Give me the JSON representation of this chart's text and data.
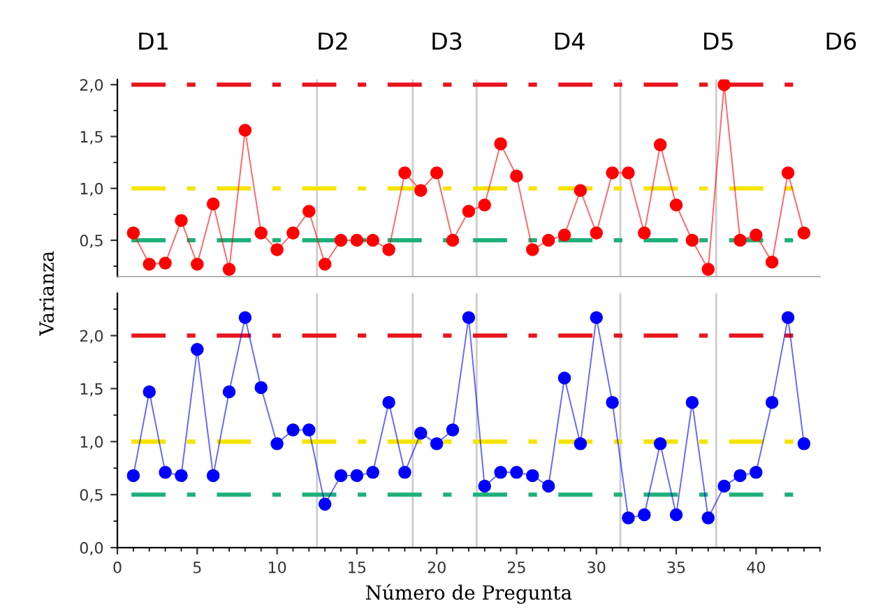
{
  "chart_data": [
    {
      "type": "line",
      "marker": "circle",
      "line_style": "solid",
      "grid": false,
      "tick_labels": "y",
      "xlim": [
        0,
        44
      ],
      "ylim": [
        0.15,
        2.05
      ],
      "yticks": [
        {
          "value": 0.5,
          "label": "0,5"
        },
        {
          "value": 1.0,
          "label": "1,0"
        },
        {
          "value": 1.5,
          "label": "1,5"
        },
        {
          "value": 2.0,
          "label": "2,0"
        }
      ],
      "annotations": [
        "D1",
        "D2",
        "D3",
        "D4",
        "D5",
        "D6"
      ],
      "series": [
        {
          "color": "#ff0000",
          "x": [
            1,
            2,
            3,
            4,
            5,
            6,
            7,
            8,
            9,
            10,
            11,
            12,
            13,
            14,
            15,
            16,
            17,
            18,
            19,
            20,
            21,
            22,
            23,
            24,
            25,
            26,
            27,
            28,
            29,
            30,
            31,
            32,
            33,
            34,
            35,
            36,
            37,
            38,
            39,
            40,
            41,
            42,
            43
          ],
          "values": [
            0.57,
            0.27,
            0.28,
            0.69,
            0.27,
            0.85,
            0.22,
            1.56,
            0.57,
            0.41,
            0.57,
            0.78,
            0.27,
            0.5,
            0.5,
            0.5,
            0.41,
            1.15,
            0.98,
            1.15,
            0.5,
            0.78,
            0.84,
            1.43,
            1.12,
            0.41,
            0.5,
            0.55,
            0.98,
            0.57,
            1.15,
            1.15,
            0.57,
            1.42,
            0.84,
            0.5,
            0.22,
            2.0,
            0.5,
            0.55,
            0.29,
            1.15,
            0.57
          ]
        }
      ],
      "ref_lines": [
        {
          "axis": "y",
          "value": 2.0,
          "color": "#e8141c",
          "line_style": "dashdot"
        },
        {
          "axis": "y",
          "value": 1.0,
          "color": "#f5e400",
          "line_style": "dashdot"
        },
        {
          "axis": "y",
          "value": 0.5,
          "color": "#1fb07a",
          "line_style": "dashdot"
        },
        {
          "axis": "x",
          "value": 12.5,
          "color": "#cccccc",
          "line_style": "solid"
        },
        {
          "axis": "x",
          "value": 18.5,
          "color": "#cccccc",
          "line_style": "solid"
        },
        {
          "axis": "x",
          "value": 22.5,
          "color": "#cccccc",
          "line_style": "solid"
        },
        {
          "axis": "x",
          "value": 31.5,
          "color": "#cccccc",
          "line_style": "solid"
        },
        {
          "axis": "x",
          "value": 37.5,
          "color": "#cccccc",
          "line_style": "solid"
        }
      ]
    },
    {
      "type": "line",
      "marker": "circle",
      "line_style": "solid",
      "grid": false,
      "xlim": [
        0,
        44
      ],
      "ylim": [
        0,
        2.4
      ],
      "xticks": [
        0,
        5,
        10,
        15,
        20,
        25,
        30,
        35,
        40
      ],
      "yticks": [
        {
          "value": 0.0,
          "label": "0,0"
        },
        {
          "value": 0.5,
          "label": "0,5"
        },
        {
          "value": 1.0,
          "label": "1,0"
        },
        {
          "value": 1.5,
          "label": "1,5"
        },
        {
          "value": 2.0,
          "label": "2,0"
        }
      ],
      "xlabel": "Número de Pregunta",
      "ylabel": "Varianza",
      "series": [
        {
          "color": "#0000ff",
          "x": [
            1,
            2,
            3,
            4,
            5,
            6,
            7,
            8,
            9,
            10,
            11,
            12,
            13,
            14,
            15,
            16,
            17,
            18,
            19,
            20,
            21,
            22,
            23,
            24,
            25,
            26,
            27,
            28,
            29,
            30,
            31,
            32,
            33,
            34,
            35,
            36,
            37,
            38,
            39,
            40,
            41,
            42,
            43
          ],
          "values": [
            0.68,
            1.47,
            0.71,
            0.68,
            1.87,
            0.68,
            1.47,
            2.17,
            1.51,
            0.98,
            1.11,
            1.11,
            0.41,
            0.68,
            0.68,
            0.71,
            1.37,
            0.71,
            1.08,
            0.98,
            1.11,
            2.17,
            0.58,
            0.71,
            0.71,
            0.68,
            0.58,
            1.6,
            0.98,
            2.17,
            1.37,
            0.28,
            0.31,
            0.98,
            0.31,
            1.37,
            0.28,
            0.58,
            0.68,
            0.71,
            1.37,
            2.17,
            0.98
          ]
        }
      ],
      "ref_lines": [
        {
          "axis": "y",
          "value": 2.0,
          "color": "#e8141c",
          "line_style": "dashdot"
        },
        {
          "axis": "y",
          "value": 1.0,
          "color": "#f5e400",
          "line_style": "dashdot"
        },
        {
          "axis": "y",
          "value": 0.5,
          "color": "#1fb07a",
          "line_style": "dashdot"
        },
        {
          "axis": "x",
          "value": 12.5,
          "color": "#cccccc",
          "line_style": "solid"
        },
        {
          "axis": "x",
          "value": 18.5,
          "color": "#cccccc",
          "line_style": "solid"
        },
        {
          "axis": "x",
          "value": 22.5,
          "color": "#cccccc",
          "line_style": "solid"
        },
        {
          "axis": "x",
          "value": 31.5,
          "color": "#cccccc",
          "line_style": "solid"
        },
        {
          "axis": "x",
          "value": 37.5,
          "color": "#cccccc",
          "line_style": "solid"
        }
      ]
    }
  ]
}
